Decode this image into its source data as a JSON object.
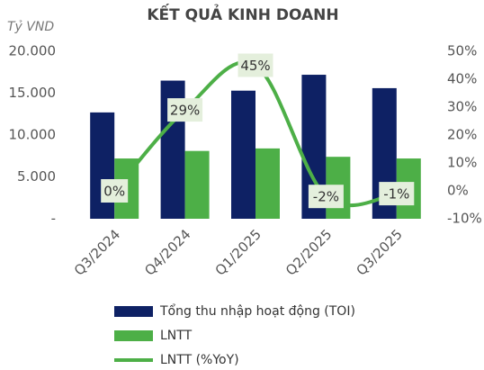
{
  "chart_data": {
    "type": "bar",
    "title": "KẾT QUẢ KINH DOANH",
    "y_axis_label": "Tỷ VND",
    "categories": [
      "Q3/2024",
      "Q4/2024",
      "Q1/2025",
      "Q2/2025",
      "Q3/2025"
    ],
    "series": [
      {
        "name": "Tổng thu nhập hoạt động (TOI)",
        "type": "bar",
        "color": "#0e2164",
        "values": [
          12700,
          16500,
          15300,
          17200,
          15600
        ]
      },
      {
        "name": "LNTT",
        "type": "bar",
        "color": "#4daf47",
        "values": [
          7200,
          8100,
          8400,
          7400,
          7200
        ]
      },
      {
        "name": "LNTT (%YoY)",
        "type": "line",
        "axis": "y2",
        "color": "#4daf47",
        "values": [
          0,
          29,
          45,
          -2,
          -1
        ],
        "value_labels": [
          "0%",
          "29%",
          "45%",
          "-2%",
          "-1%"
        ]
      }
    ],
    "ylim": [
      0,
      20000
    ],
    "yticks": [
      {
        "value": 0,
        "label": "-"
      },
      {
        "value": 5000,
        "label": "5.000"
      },
      {
        "value": 10000,
        "label": "10.000"
      },
      {
        "value": 15000,
        "label": "15.000"
      },
      {
        "value": 20000,
        "label": "20.000"
      }
    ],
    "y2lim": [
      -10,
      50
    ],
    "y2ticks": [
      {
        "value": -10,
        "label": "-10%"
      },
      {
        "value": 0,
        "label": "0%"
      },
      {
        "value": 10,
        "label": "10%"
      },
      {
        "value": 20,
        "label": "20%"
      },
      {
        "value": 30,
        "label": "30%"
      },
      {
        "value": 40,
        "label": "40%"
      },
      {
        "value": 50,
        "label": "50%"
      }
    ],
    "grid": false,
    "legend": "bottom"
  }
}
